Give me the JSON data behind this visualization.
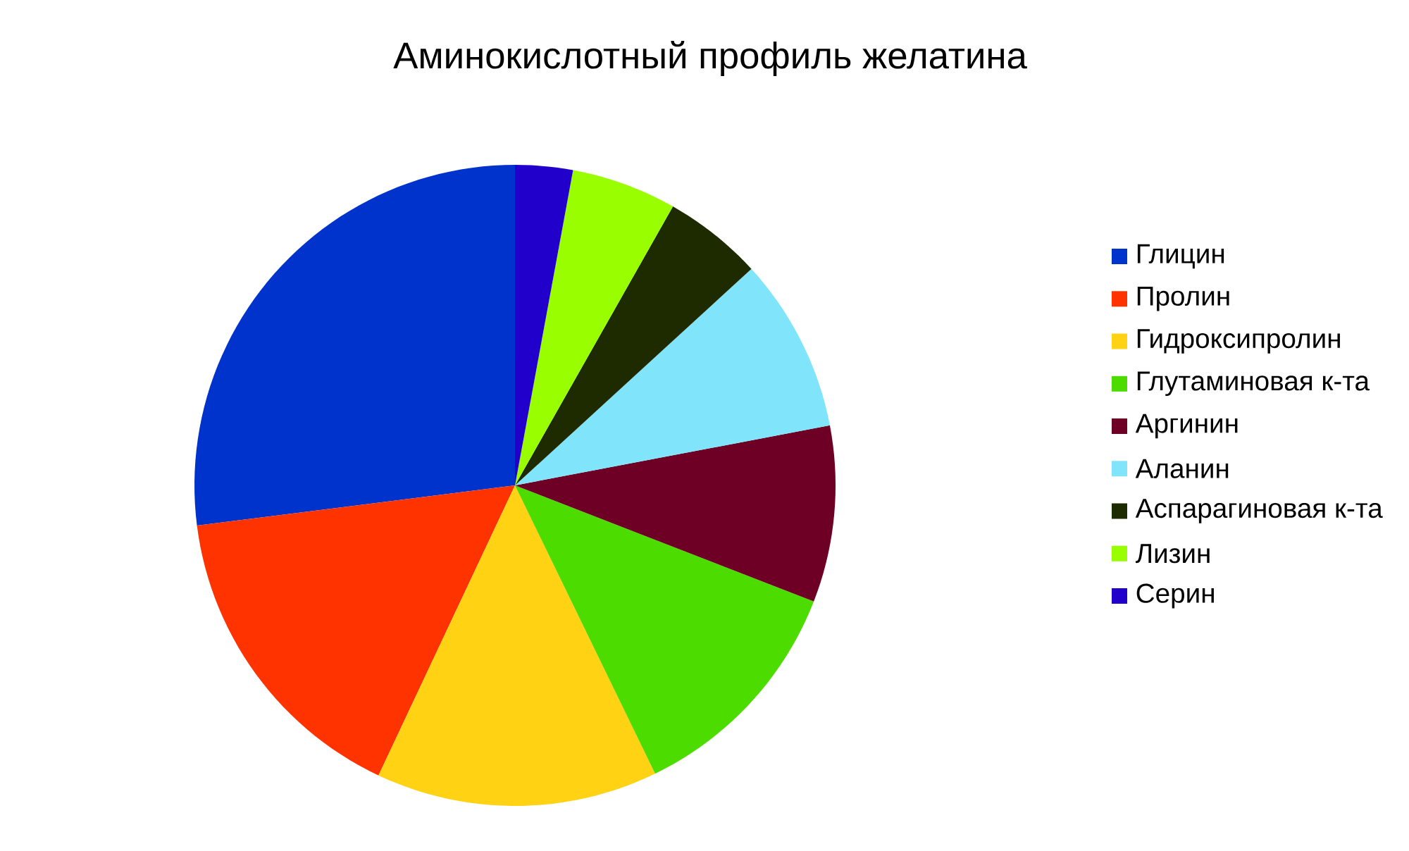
{
  "chart_data": {
    "type": "pie",
    "title": "Аминокислотный профиль желатина",
    "categories": [
      "Глицин",
      "Пролин",
      "Гидроксипролин",
      "Глутаминовая к-та",
      "Аргинин",
      "Аланин",
      "Аспарагиновая к-та",
      "Лизин",
      "Серин"
    ],
    "values": [
      27,
      16,
      14.2,
      11.9,
      8.9,
      8.8,
      5,
      5.3,
      2.9
    ],
    "colors": [
      "#0033cc",
      "#ff3300",
      "#ffd214",
      "#4cdc00",
      "#6e0026",
      "#80e4fa",
      "#1e2a00",
      "#99ff00",
      "#2200cc"
    ],
    "legend": "right"
  }
}
